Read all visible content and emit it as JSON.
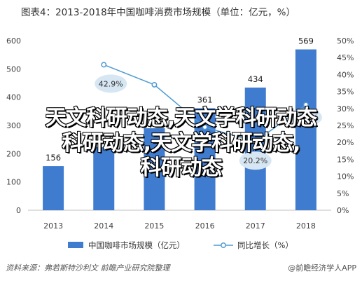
{
  "header": {
    "title": "图表4：2013-2018年中国咖啡消费市场规模（单位：亿元，%）"
  },
  "chart_data": {
    "type": "bar",
    "categories": [
      "2013",
      "2014",
      "2015",
      "2016",
      "2017",
      "2018"
    ],
    "series": [
      {
        "name": "中国咖啡市场规模（亿元）",
        "kind": "bar",
        "axis": "left",
        "color": "#3f7cd0",
        "values": [
          156,
          223,
          290,
          361,
          434,
          569
        ],
        "labels": [
          "156",
          "223",
          "",
          "361",
          "434",
          "569"
        ]
      },
      {
        "name": "同比增长（%）",
        "kind": "line",
        "axis": "right",
        "color": "#4e9ad4",
        "values": [
          null,
          42.9,
          37.0,
          24.5,
          20.2,
          31.1
        ],
        "labels": [
          "",
          "42.9%",
          "",
          "",
          "20.2%",
          "31.1%"
        ]
      }
    ],
    "left_axis": {
      "ylim": [
        0,
        600
      ],
      "ticks": [
        "0",
        "100",
        "200",
        "300",
        "400",
        "500",
        "600"
      ]
    },
    "right_axis": {
      "ylim": [
        0,
        50
      ],
      "ticks": [
        "0%",
        "5%",
        "10%",
        "15%",
        "20%",
        "25%",
        "30%",
        "35%",
        "40%",
        "45%",
        "50%"
      ]
    },
    "grid": false,
    "legend_position": "bottom"
  },
  "legend": {
    "bar_label": "中国咖啡市场规模（亿元）",
    "line_label": "同比增长（%）"
  },
  "footer": {
    "source": "资料来源：弗若斯特沙利文 前瞻产业研究院整理",
    "brand": "@前瞻经济学人APP"
  },
  "overlay": {
    "line1": "天文科研动态,天文学科研动态",
    "line2": "科研动态,天文学科研动态,",
    "line3": "科研动态"
  },
  "colors": {
    "bar": "#3f7cd0",
    "line": "#4e9ad4",
    "bubble": "#d7e6f3"
  }
}
